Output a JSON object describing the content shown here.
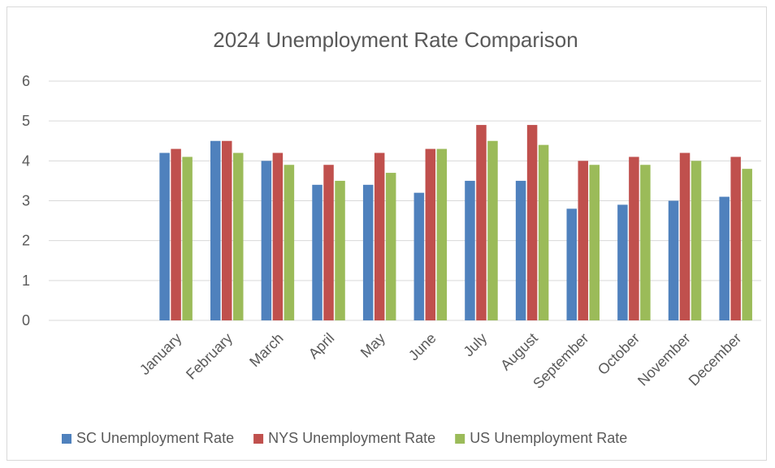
{
  "chart_data": {
    "type": "bar",
    "title": "2024 Unemployment Rate Comparison",
    "xlabel": "",
    "ylabel": "",
    "ylim": [
      0,
      6
    ],
    "yticks": [
      0,
      1,
      2,
      3,
      4,
      5,
      6
    ],
    "grid": true,
    "legend_position": "bottom",
    "categories": [
      "",
      "",
      "January",
      "February",
      "March",
      "April",
      "May",
      "June",
      "July",
      "August",
      "September",
      "October",
      "November",
      "December"
    ],
    "series": [
      {
        "name": "SC Unemployment Rate",
        "color": "#4f81bd",
        "values": [
          null,
          null,
          4.2,
          4.5,
          4.0,
          3.4,
          3.4,
          3.2,
          3.5,
          3.5,
          2.8,
          2.9,
          3.0,
          3.1
        ]
      },
      {
        "name": "NYS Unemployment Rate",
        "color": "#c0504d",
        "values": [
          null,
          null,
          4.3,
          4.5,
          4.2,
          3.9,
          4.2,
          4.3,
          4.9,
          4.9,
          4.0,
          4.1,
          4.2,
          4.1
        ]
      },
      {
        "name": "US Unemployment Rate",
        "color": "#9bbb59",
        "values": [
          null,
          null,
          4.1,
          4.2,
          3.9,
          3.5,
          3.7,
          4.3,
          4.5,
          4.4,
          3.9,
          3.9,
          4.0,
          3.8
        ]
      }
    ]
  }
}
